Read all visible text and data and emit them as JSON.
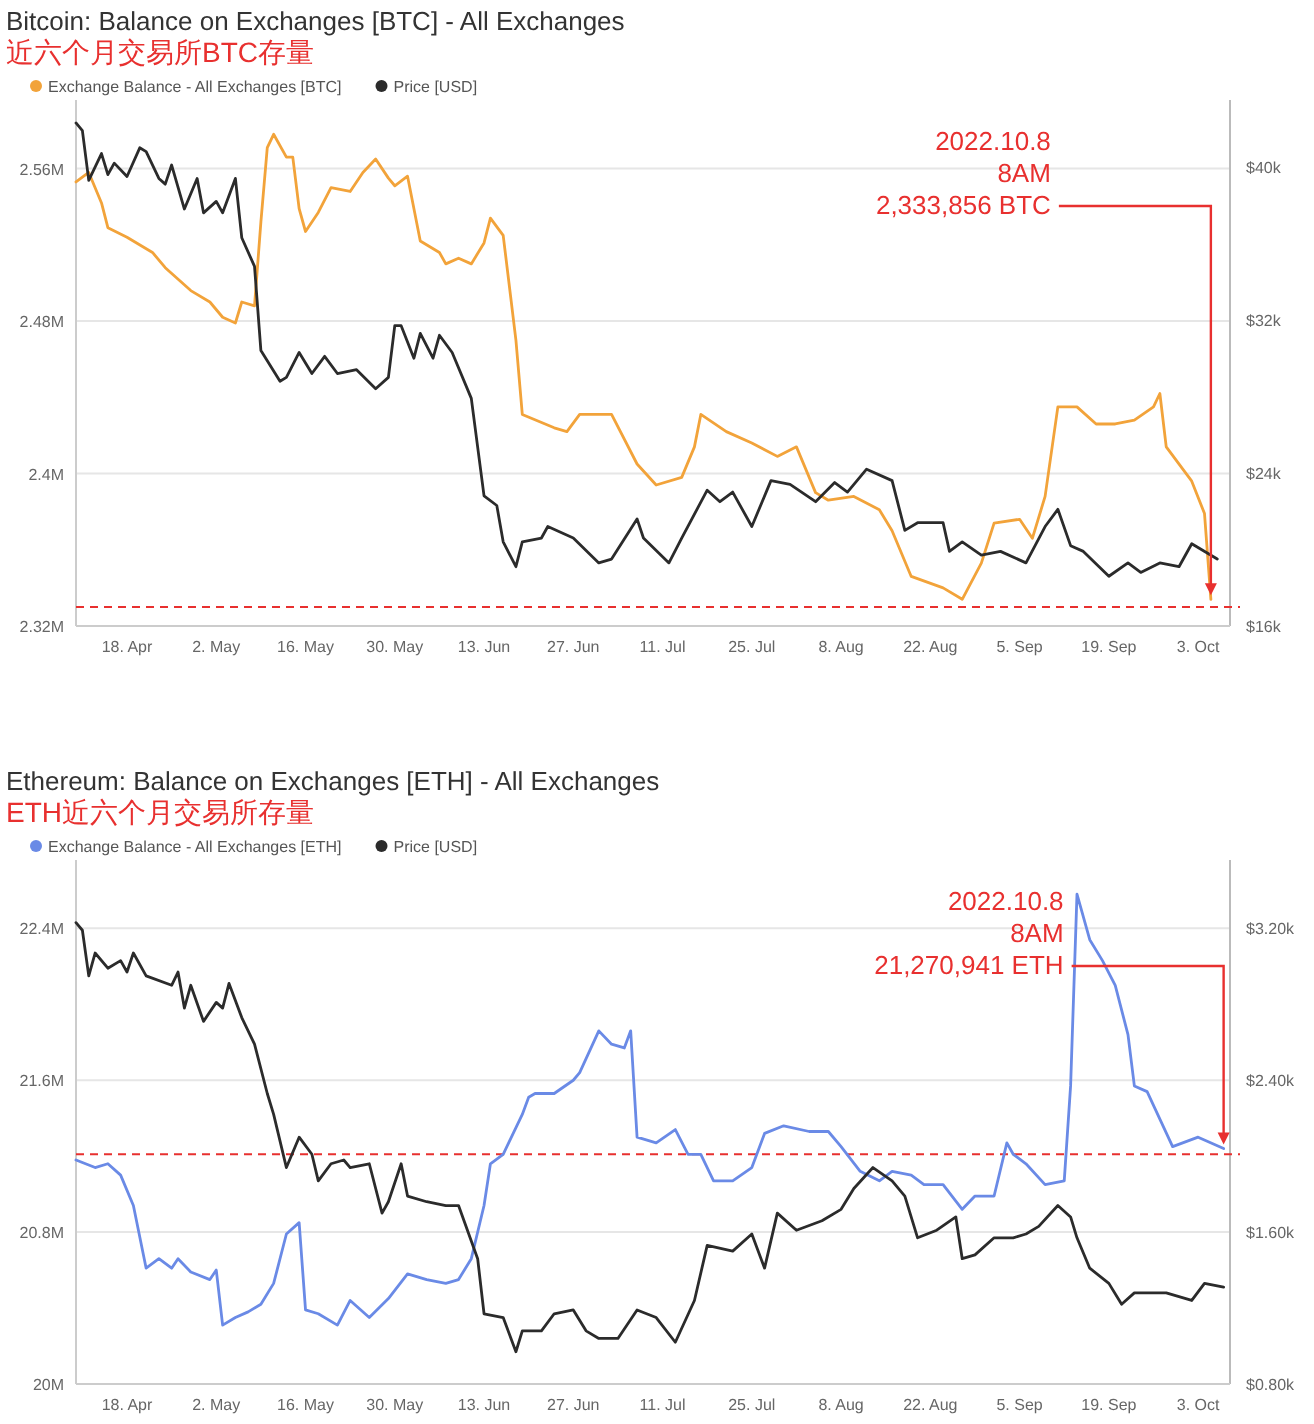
{
  "chart_data": [
    {
      "type": "line",
      "title": "Bitcoin: Balance on Exchanges [BTC] - All Exchanges",
      "subtitle": "近六个月交易所BTC存量",
      "legend": "top left",
      "grid": "y",
      "xlim": [
        "2022-04-10",
        "2022-10-08"
      ],
      "xticks": [
        {
          "value": "2022-04-18",
          "label": "18. Apr"
        },
        {
          "value": "2022-05-02",
          "label": "2. May"
        },
        {
          "value": "2022-05-16",
          "label": "16. May"
        },
        {
          "value": "2022-05-30",
          "label": "30. May"
        },
        {
          "value": "2022-06-13",
          "label": "13. Jun"
        },
        {
          "value": "2022-06-27",
          "label": "27. Jun"
        },
        {
          "value": "2022-07-11",
          "label": "11. Jul"
        },
        {
          "value": "2022-07-25",
          "label": "25. Jul"
        },
        {
          "value": "2022-08-08",
          "label": "8. Aug"
        },
        {
          "value": "2022-08-22",
          "label": "22. Aug"
        },
        {
          "value": "2022-09-05",
          "label": "5. Sep"
        },
        {
          "value": "2022-09-19",
          "label": "19. Sep"
        },
        {
          "value": "2022-10-03",
          "label": "3. Oct"
        }
      ],
      "ylim": [
        2320000,
        2596000
      ],
      "yticks": [
        {
          "value": 2320000,
          "label": "2.32M"
        },
        {
          "value": 2400000,
          "label": "2.4M"
        },
        {
          "value": 2480000,
          "label": "2.48M"
        },
        {
          "value": 2560000,
          "label": "2.56M"
        }
      ],
      "y2lim": [
        16000,
        43500
      ],
      "y2ticks": [
        {
          "value": 16000,
          "label": "$16k"
        },
        {
          "value": 24000,
          "label": "$24k"
        },
        {
          "value": 32000,
          "label": "$32k"
        },
        {
          "value": 40000,
          "label": "$40k"
        }
      ],
      "ref_lines": [
        {
          "axis": "y",
          "value": 2330000,
          "color": "#e8302f",
          "line_style": "dashed"
        }
      ],
      "annotations": [
        {
          "text": "2022.10.8\n8AM\n2,333,856 BTC",
          "x": "2022-10-05",
          "y": 2334000
        }
      ],
      "series": [
        {
          "name": "Exchange Balance - All Exchanges [BTC]",
          "color": "#f2a33a",
          "x": [
            "2022-04-10",
            "2022-04-12",
            "2022-04-14",
            "2022-04-15",
            "2022-04-18",
            "2022-04-22",
            "2022-04-24",
            "2022-04-28",
            "2022-05-01",
            "2022-05-03",
            "2022-05-05",
            "2022-05-06",
            "2022-05-08",
            "2022-05-09",
            "2022-05-10",
            "2022-05-11",
            "2022-05-13",
            "2022-05-14",
            "2022-05-15",
            "2022-05-16",
            "2022-05-18",
            "2022-05-20",
            "2022-05-23",
            "2022-05-25",
            "2022-05-27",
            "2022-05-29",
            "2022-05-30",
            "2022-06-01",
            "2022-06-03",
            "2022-06-06",
            "2022-06-07",
            "2022-06-09",
            "2022-06-11",
            "2022-06-13",
            "2022-06-14",
            "2022-06-16",
            "2022-06-18",
            "2022-06-19",
            "2022-06-24",
            "2022-06-26",
            "2022-06-28",
            "2022-07-03",
            "2022-07-07",
            "2022-07-10",
            "2022-07-14",
            "2022-07-16",
            "2022-07-17",
            "2022-07-21",
            "2022-07-25",
            "2022-07-29",
            "2022-08-01",
            "2022-08-04",
            "2022-08-06",
            "2022-08-10",
            "2022-08-14",
            "2022-08-16",
            "2022-08-19",
            "2022-08-24",
            "2022-08-27",
            "2022-08-30",
            "2022-09-01",
            "2022-09-05",
            "2022-09-07",
            "2022-09-09",
            "2022-09-11",
            "2022-09-14",
            "2022-09-17",
            "2022-09-20",
            "2022-09-23",
            "2022-09-26",
            "2022-09-27",
            "2022-09-28",
            "2022-10-02",
            "2022-10-04",
            "2022-10-05"
          ],
          "values": [
            2553000,
            2558000,
            2542000,
            2529000,
            2524000,
            2516000,
            2508000,
            2496000,
            2490000,
            2482000,
            2479000,
            2490000,
            2488000,
            2532000,
            2571000,
            2578000,
            2566000,
            2566000,
            2539000,
            2527000,
            2537000,
            2550000,
            2548000,
            2558000,
            2565000,
            2555000,
            2551000,
            2556000,
            2522000,
            2516000,
            2510000,
            2513000,
            2510000,
            2521000,
            2534000,
            2525000,
            2470000,
            2431000,
            2424000,
            2422000,
            2431000,
            2431000,
            2405000,
            2394000,
            2398000,
            2414000,
            2431000,
            2422000,
            2416000,
            2409000,
            2414000,
            2390000,
            2386000,
            2388000,
            2381000,
            2370000,
            2346000,
            2340000,
            2334000,
            2353000,
            2374000,
            2376000,
            2366000,
            2388000,
            2435000,
            2435000,
            2426000,
            2426000,
            2428000,
            2435000,
            2442000,
            2414000,
            2396000,
            2379000,
            2334000
          ]
        },
        {
          "name": "Price [USD]",
          "color": "#2b2b2b",
          "axis": "y2",
          "x": [
            "2022-04-10",
            "2022-04-11",
            "2022-04-12",
            "2022-04-14",
            "2022-04-15",
            "2022-04-16",
            "2022-04-18",
            "2022-04-20",
            "2022-04-21",
            "2022-04-23",
            "2022-04-24",
            "2022-04-25",
            "2022-04-27",
            "2022-04-29",
            "2022-04-30",
            "2022-05-02",
            "2022-05-03",
            "2022-05-05",
            "2022-05-06",
            "2022-05-08",
            "2022-05-09",
            "2022-05-12",
            "2022-05-13",
            "2022-05-15",
            "2022-05-17",
            "2022-05-19",
            "2022-05-21",
            "2022-05-24",
            "2022-05-27",
            "2022-05-29",
            "2022-05-30",
            "2022-05-31",
            "2022-06-02",
            "2022-06-03",
            "2022-06-05",
            "2022-06-06",
            "2022-06-08",
            "2022-06-11",
            "2022-06-13",
            "2022-06-15",
            "2022-06-16",
            "2022-06-18",
            "2022-06-19",
            "2022-06-22",
            "2022-06-23",
            "2022-06-27",
            "2022-07-01",
            "2022-07-03",
            "2022-07-07",
            "2022-07-08",
            "2022-07-12",
            "2022-07-14",
            "2022-07-18",
            "2022-07-20",
            "2022-07-22",
            "2022-07-25",
            "2022-07-28",
            "2022-07-31",
            "2022-08-04",
            "2022-08-07",
            "2022-08-09",
            "2022-08-12",
            "2022-08-16",
            "2022-08-18",
            "2022-08-20",
            "2022-08-24",
            "2022-08-25",
            "2022-08-27",
            "2022-08-30",
            "2022-09-02",
            "2022-09-06",
            "2022-09-09",
            "2022-09-11",
            "2022-09-13",
            "2022-09-15",
            "2022-09-19",
            "2022-09-22",
            "2022-09-24",
            "2022-09-27",
            "2022-09-30",
            "2022-10-02",
            "2022-10-06"
          ],
          "values": [
            42300,
            41900,
            39300,
            40700,
            39600,
            40200,
            39500,
            41000,
            40800,
            39400,
            39100,
            40100,
            37800,
            39400,
            37600,
            38200,
            37600,
            39400,
            36300,
            34800,
            30400,
            28800,
            29000,
            30300,
            29200,
            30100,
            29200,
            29400,
            28400,
            29000,
            31700,
            31700,
            30000,
            31300,
            30000,
            31200,
            30300,
            27900,
            22800,
            22300,
            20400,
            19100,
            20400,
            20600,
            21200,
            20600,
            19300,
            19500,
            21600,
            20600,
            19300,
            20600,
            23100,
            22500,
            23000,
            21200,
            23600,
            23400,
            22500,
            23500,
            23000,
            24200,
            23600,
            21000,
            21400,
            21400,
            19900,
            20400,
            19700,
            19900,
            19300,
            21200,
            22100,
            20200,
            19900,
            18600,
            19300,
            18800,
            19300,
            19100,
            20300,
            19500
          ]
        }
      ]
    },
    {
      "type": "line",
      "title": "Ethereum: Balance on Exchanges [ETH] - All Exchanges",
      "subtitle": "ETH近六个月交易所存量",
      "legend": "top left",
      "grid": "y",
      "xlim": [
        "2022-04-10",
        "2022-10-08"
      ],
      "xticks": [
        {
          "value": "2022-04-18",
          "label": "18. Apr"
        },
        {
          "value": "2022-05-02",
          "label": "2. May"
        },
        {
          "value": "2022-05-16",
          "label": "16. May"
        },
        {
          "value": "2022-05-30",
          "label": "30. May"
        },
        {
          "value": "2022-06-13",
          "label": "13. Jun"
        },
        {
          "value": "2022-06-27",
          "label": "27. Jun"
        },
        {
          "value": "2022-07-11",
          "label": "11. Jul"
        },
        {
          "value": "2022-07-25",
          "label": "25. Jul"
        },
        {
          "value": "2022-08-08",
          "label": "8. Aug"
        },
        {
          "value": "2022-08-22",
          "label": "22. Aug"
        },
        {
          "value": "2022-09-05",
          "label": "5. Sep"
        },
        {
          "value": "2022-09-19",
          "label": "19. Sep"
        },
        {
          "value": "2022-10-03",
          "label": "3. Oct"
        }
      ],
      "ylim": [
        20000000,
        22760000
      ],
      "yticks": [
        {
          "value": 20000000,
          "label": "20M"
        },
        {
          "value": 20800000,
          "label": "20.8M"
        },
        {
          "value": 21600000,
          "label": "21.6M"
        },
        {
          "value": 22400000,
          "label": "22.4M"
        }
      ],
      "y2lim": [
        800,
        3560
      ],
      "y2ticks": [
        {
          "value": 800,
          "label": "$0.80k"
        },
        {
          "value": 1600,
          "label": "$1.60k"
        },
        {
          "value": 2400,
          "label": "$2.40k"
        },
        {
          "value": 3200,
          "label": "$3.20k"
        }
      ],
      "ref_lines": [
        {
          "axis": "y",
          "value": 21210000,
          "color": "#e8302f",
          "line_style": "dashed"
        }
      ],
      "annotations": [
        {
          "text": "2022.10.8\n8AM\n21,270,941 ETH",
          "x": "2022-10-07",
          "y": 21240000
        }
      ],
      "series": [
        {
          "name": "Exchange Balance - All Exchanges [ETH]",
          "color": "#6a8ae6",
          "x": [
            "2022-04-10",
            "2022-04-13",
            "2022-04-15",
            "2022-04-17",
            "2022-04-19",
            "2022-04-21",
            "2022-04-23",
            "2022-04-25",
            "2022-04-26",
            "2022-04-28",
            "2022-05-01",
            "2022-05-02",
            "2022-05-03",
            "2022-05-05",
            "2022-05-07",
            "2022-05-09",
            "2022-05-11",
            "2022-05-13",
            "2022-05-15",
            "2022-05-16",
            "2022-05-18",
            "2022-05-21",
            "2022-05-23",
            "2022-05-26",
            "2022-05-29",
            "2022-06-01",
            "2022-06-04",
            "2022-06-07",
            "2022-06-09",
            "2022-06-11",
            "2022-06-13",
            "2022-06-14",
            "2022-06-16",
            "2022-06-19",
            "2022-06-20",
            "2022-06-21",
            "2022-06-24",
            "2022-06-27",
            "2022-06-28",
            "2022-07-01",
            "2022-07-03",
            "2022-07-05",
            "2022-07-06",
            "2022-07-07",
            "2022-07-10",
            "2022-07-13",
            "2022-07-15",
            "2022-07-17",
            "2022-07-19",
            "2022-07-22",
            "2022-07-25",
            "2022-07-27",
            "2022-07-30",
            "2022-08-03",
            "2022-08-06",
            "2022-08-08",
            "2022-08-11",
            "2022-08-14",
            "2022-08-16",
            "2022-08-19",
            "2022-08-21",
            "2022-08-24",
            "2022-08-27",
            "2022-08-29",
            "2022-09-01",
            "2022-09-03",
            "2022-09-04",
            "2022-09-06",
            "2022-09-09",
            "2022-09-12",
            "2022-09-13",
            "2022-09-14",
            "2022-09-16",
            "2022-09-18",
            "2022-09-20",
            "2022-09-22",
            "2022-09-23",
            "2022-09-25",
            "2022-09-29",
            "2022-10-03",
            "2022-10-07"
          ],
          "values": [
            21180000,
            21140000,
            21160000,
            21100000,
            20940000,
            20610000,
            20660000,
            20610000,
            20660000,
            20590000,
            20550000,
            20600000,
            20310000,
            20350000,
            20380000,
            20420000,
            20530000,
            20790000,
            20850000,
            20390000,
            20370000,
            20310000,
            20440000,
            20350000,
            20450000,
            20580000,
            20550000,
            20530000,
            20550000,
            20660000,
            20940000,
            21160000,
            21210000,
            21420000,
            21510000,
            21530000,
            21530000,
            21600000,
            21640000,
            21860000,
            21790000,
            21770000,
            21860000,
            21300000,
            21270000,
            21340000,
            21210000,
            21210000,
            21070000,
            21070000,
            21140000,
            21320000,
            21360000,
            21330000,
            21330000,
            21250000,
            21120000,
            21070000,
            21120000,
            21100000,
            21050000,
            21050000,
            20920000,
            20990000,
            20990000,
            21270000,
            21210000,
            21160000,
            21050000,
            21070000,
            21570000,
            22580000,
            22340000,
            22230000,
            22100000,
            21840000,
            21570000,
            21540000,
            21250000,
            21300000,
            21240000
          ]
        },
        {
          "name": "Price [USD]",
          "color": "#2b2b2b",
          "axis": "y2",
          "x": [
            "2022-04-10",
            "2022-04-11",
            "2022-04-12",
            "2022-04-13",
            "2022-04-15",
            "2022-04-17",
            "2022-04-18",
            "2022-04-19",
            "2022-04-21",
            "2022-04-25",
            "2022-04-26",
            "2022-04-27",
            "2022-04-28",
            "2022-04-30",
            "2022-05-02",
            "2022-05-03",
            "2022-05-04",
            "2022-05-06",
            "2022-05-08",
            "2022-05-10",
            "2022-05-11",
            "2022-05-13",
            "2022-05-15",
            "2022-05-17",
            "2022-05-18",
            "2022-05-20",
            "2022-05-22",
            "2022-05-23",
            "2022-05-26",
            "2022-05-28",
            "2022-05-29",
            "2022-05-31",
            "2022-06-01",
            "2022-06-04",
            "2022-06-07",
            "2022-06-09",
            "2022-06-12",
            "2022-06-13",
            "2022-06-16",
            "2022-06-18",
            "2022-06-19",
            "2022-06-22",
            "2022-06-24",
            "2022-06-27",
            "2022-06-29",
            "2022-07-01",
            "2022-07-04",
            "2022-07-07",
            "2022-07-10",
            "2022-07-13",
            "2022-07-16",
            "2022-07-18",
            "2022-07-22",
            "2022-07-25",
            "2022-07-27",
            "2022-07-29",
            "2022-08-01",
            "2022-08-05",
            "2022-08-08",
            "2022-08-10",
            "2022-08-13",
            "2022-08-16",
            "2022-08-18",
            "2022-08-20",
            "2022-08-23",
            "2022-08-26",
            "2022-08-27",
            "2022-08-29",
            "2022-09-01",
            "2022-09-04",
            "2022-09-06",
            "2022-09-08",
            "2022-09-11",
            "2022-09-13",
            "2022-09-14",
            "2022-09-16",
            "2022-09-19",
            "2022-09-21",
            "2022-09-23",
            "2022-09-26",
            "2022-09-28",
            "2022-10-02",
            "2022-10-04",
            "2022-10-07"
          ],
          "values": [
            3230,
            3190,
            2950,
            3070,
            2990,
            3030,
            2970,
            3070,
            2950,
            2900,
            2970,
            2780,
            2900,
            2710,
            2810,
            2780,
            2910,
            2730,
            2590,
            2330,
            2220,
            1940,
            2100,
            2010,
            1870,
            1960,
            1980,
            1940,
            1960,
            1700,
            1760,
            1960,
            1790,
            1760,
            1740,
            1740,
            1460,
            1170,
            1150,
            970,
            1080,
            1080,
            1170,
            1190,
            1080,
            1040,
            1040,
            1190,
            1150,
            1020,
            1240,
            1530,
            1500,
            1590,
            1410,
            1700,
            1610,
            1660,
            1720,
            1830,
            1940,
            1870,
            1790,
            1570,
            1610,
            1680,
            1460,
            1480,
            1570,
            1570,
            1590,
            1630,
            1740,
            1680,
            1570,
            1410,
            1330,
            1220,
            1280,
            1280,
            1280,
            1240,
            1330,
            1310
          ]
        }
      ]
    }
  ]
}
